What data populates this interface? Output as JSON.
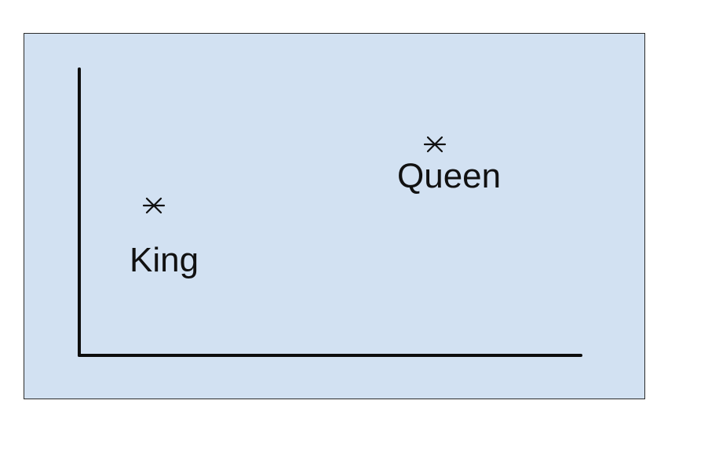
{
  "colors": {
    "panel_background": "#d2e1f2",
    "panel_border": "#2b2b2b",
    "axis": "#0d0d0d",
    "text": "#111111"
  },
  "diagram": {
    "marker_symbol": "*",
    "points": [
      {
        "label": "King"
      },
      {
        "label": "Queen"
      }
    ]
  }
}
